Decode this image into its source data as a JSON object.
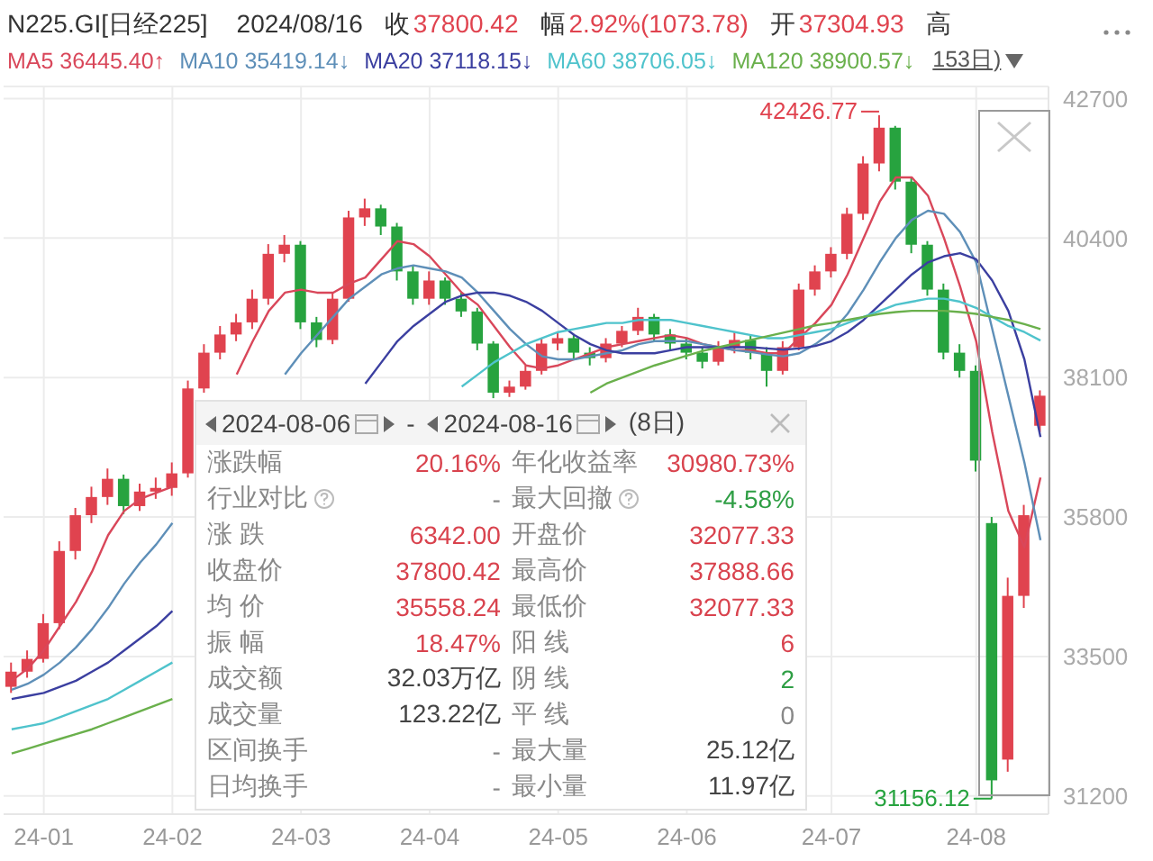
{
  "chart_data": [
    {
      "type": "candlestick",
      "title": "N225.GI[日经225]",
      "subtitle": "2024/08/16",
      "categories": [
        null,
        null,
        "24-01",
        null,
        null,
        null,
        null,
        null,
        null,
        null,
        "24-02",
        null,
        null,
        null,
        null,
        null,
        null,
        null,
        "24-03",
        null,
        null,
        null,
        null,
        null,
        null,
        null,
        "24-04",
        null,
        null,
        null,
        null,
        null,
        null,
        null,
        "24-05",
        null,
        null,
        null,
        null,
        null,
        null,
        null,
        "24-06",
        null,
        null,
        null,
        null,
        null,
        null,
        null,
        null,
        "24-07",
        null,
        null,
        null,
        null,
        null,
        null,
        null,
        null,
        "24-08",
        null,
        null,
        null,
        null
      ],
      "ohlc": [
        [
          33000,
          33400,
          32900,
          33250
        ],
        [
          33250,
          33600,
          33150,
          33460
        ],
        [
          33460,
          34200,
          33400,
          34050
        ],
        [
          34050,
          35400,
          33950,
          35240
        ],
        [
          35240,
          35950,
          35100,
          35830
        ],
        [
          35830,
          36300,
          35700,
          36130
        ],
        [
          36130,
          36600,
          36000,
          36430
        ],
        [
          36430,
          36500,
          35850,
          35980
        ],
        [
          35980,
          36350,
          35900,
          36220
        ],
        [
          36220,
          36450,
          36100,
          36280
        ],
        [
          36280,
          36700,
          36150,
          36520
        ],
        [
          36520,
          38050,
          36450,
          37920
        ],
        [
          37920,
          38650,
          37850,
          38510
        ],
        [
          38510,
          38950,
          38400,
          38810
        ],
        [
          38810,
          39150,
          38700,
          39010
        ],
        [
          39010,
          39550,
          38900,
          39400
        ],
        [
          39400,
          40300,
          39300,
          40140
        ],
        [
          40140,
          40450,
          40000,
          40290
        ],
        [
          40290,
          40350,
          38900,
          39010
        ],
        [
          39010,
          39100,
          38600,
          38720
        ],
        [
          38720,
          39500,
          38650,
          39400
        ],
        [
          39400,
          40850,
          39350,
          40740
        ],
        [
          40740,
          41050,
          40600,
          40890
        ],
        [
          40890,
          40950,
          40450,
          40590
        ],
        [
          40590,
          40650,
          39700,
          39850
        ],
        [
          39850,
          39950,
          39300,
          39400
        ],
        [
          39400,
          39850,
          39300,
          39700
        ],
        [
          39700,
          39750,
          39300,
          39400
        ],
        [
          39400,
          39500,
          39100,
          39190
        ],
        [
          39190,
          39250,
          38550,
          38660
        ],
        [
          38660,
          38700,
          37760,
          37850
        ],
        [
          37850,
          38050,
          37780,
          37950
        ],
        [
          37950,
          38300,
          37900,
          38210
        ],
        [
          38210,
          38750,
          38150,
          38660
        ],
        [
          38660,
          38850,
          38550,
          38750
        ],
        [
          38750,
          38800,
          38400,
          38510
        ],
        [
          38510,
          38600,
          38300,
          38420
        ],
        [
          38420,
          38750,
          38350,
          38660
        ],
        [
          38660,
          38950,
          38600,
          38870
        ],
        [
          38870,
          39250,
          38800,
          39100
        ],
        [
          39100,
          39150,
          38700,
          38810
        ],
        [
          38810,
          38900,
          38550,
          38660
        ],
        [
          38660,
          38750,
          38400,
          38510
        ],
        [
          38510,
          38600,
          38250,
          38360
        ],
        [
          38360,
          38700,
          38300,
          38600
        ],
        [
          38600,
          38850,
          38500,
          38720
        ],
        [
          38720,
          38800,
          38400,
          38510
        ],
        [
          38510,
          38600,
          37950,
          38210
        ],
        [
          38210,
          38700,
          38150,
          38600
        ],
        [
          38600,
          39650,
          38550,
          39550
        ],
        [
          39550,
          39950,
          39450,
          39850
        ],
        [
          39850,
          40250,
          39750,
          40140
        ],
        [
          40140,
          40900,
          40050,
          40800
        ],
        [
          40800,
          41750,
          40700,
          41630
        ],
        [
          41630,
          42426.77,
          41500,
          42220
        ],
        [
          42220,
          42250,
          41200,
          41330
        ],
        [
          41330,
          41400,
          40150,
          40290
        ],
        [
          40290,
          40350,
          39450,
          39550
        ],
        [
          39550,
          39650,
          38400,
          38510
        ],
        [
          38510,
          38650,
          38100,
          38210
        ],
        [
          38210,
          38300,
          36550,
          36730
        ],
        [
          35700,
          35800,
          31156.12,
          31458
        ],
        [
          31800,
          34800,
          31600,
          34500
        ],
        [
          34500,
          36000,
          34300,
          35830
        ],
        [
          37304.93,
          37888.66,
          37200,
          37800.42
        ]
      ],
      "series": [
        {
          "name": "MA5 36445.40↑",
          "type": "line",
          "color": "#d9475a",
          "values": [
            33100,
            33300,
            33600,
            34000,
            34400,
            34900,
            35500,
            35900,
            36100,
            36200,
            36300,
            null,
            null,
            null,
            38150,
            38700,
            39200,
            39500,
            39550,
            39500,
            39500,
            39650,
            39750,
            40050,
            40350,
            40300,
            40100,
            39800,
            39500,
            39300,
            38950,
            38600,
            38300,
            38250,
            38300,
            38400,
            38500,
            38600,
            38650,
            38700,
            38750,
            38800,
            38750,
            38650,
            38600,
            38550,
            38550,
            38500,
            38500,
            38750,
            39000,
            39300,
            39800,
            40400,
            41000,
            41400,
            41400,
            41100,
            40400,
            39600,
            38700,
            37200,
            35900,
            35300,
            36450
          ]
        },
        {
          "name": "MA10 35419.14↓",
          "type": "line",
          "color": "#5e8fb8",
          "values": [
            32950,
            33050,
            33200,
            33400,
            33650,
            33950,
            34300,
            34700,
            35050,
            35350,
            35700,
            null,
            null,
            null,
            null,
            null,
            null,
            38150,
            38500,
            38800,
            39100,
            39400,
            39600,
            39800,
            39900,
            39950,
            39900,
            39850,
            39750,
            39500,
            39200,
            38900,
            38650,
            38450,
            38400,
            38400,
            38450,
            38500,
            38550,
            38650,
            38700,
            38700,
            38700,
            38650,
            38600,
            38550,
            38520,
            38480,
            38450,
            38500,
            38650,
            38850,
            39150,
            39550,
            40000,
            40400,
            40700,
            40850,
            40800,
            40500,
            40000,
            38900,
            37800,
            36700,
            35420
          ]
        },
        {
          "name": "MA20 37118.15↓",
          "type": "line",
          "color": "#3b3fa0",
          "values": [
            32800,
            32850,
            32900,
            33000,
            33100,
            33250,
            33400,
            33600,
            33800,
            34000,
            34250,
            null,
            null,
            null,
            null,
            null,
            null,
            null,
            null,
            null,
            null,
            null,
            38000,
            38350,
            38700,
            38950,
            39150,
            39350,
            39450,
            39500,
            39500,
            39450,
            39350,
            39200,
            39000,
            38800,
            38650,
            38550,
            38500,
            38500,
            38500,
            38550,
            38600,
            38600,
            38600,
            38600,
            38600,
            38580,
            38560,
            38580,
            38620,
            38700,
            38850,
            39050,
            39300,
            39550,
            39800,
            40000,
            40100,
            40150,
            40050,
            39700,
            39200,
            38400,
            37120
          ]
        },
        {
          "name": "MA60 38706.05↓",
          "type": "line",
          "color": "#4fc3cc",
          "values": [
            32300,
            32350,
            32400,
            32500,
            32600,
            32700,
            32800,
            32950,
            33100,
            33250,
            33400,
            null,
            null,
            null,
            null,
            null,
            null,
            null,
            null,
            null,
            null,
            null,
            null,
            null,
            null,
            null,
            null,
            null,
            37950,
            38150,
            38350,
            38500,
            38650,
            38750,
            38850,
            38900,
            38950,
            39000,
            39000,
            39050,
            39050,
            39050,
            39000,
            38950,
            38900,
            38850,
            38800,
            38750,
            38750,
            38800,
            38850,
            38900,
            39000,
            39100,
            39200,
            39300,
            39350,
            39400,
            39400,
            39350,
            39250,
            39100,
            38950,
            38850,
            38710
          ]
        },
        {
          "name": "MA120 38900.57↓",
          "type": "line",
          "color": "#6ab04c",
          "values": [
            31900,
            31980,
            32060,
            32140,
            32220,
            32300,
            32400,
            32500,
            32600,
            32700,
            32800,
            null,
            null,
            null,
            null,
            null,
            null,
            null,
            null,
            null,
            null,
            null,
            null,
            null,
            null,
            null,
            null,
            null,
            null,
            null,
            null,
            null,
            null,
            null,
            null,
            null,
            37850,
            38000,
            38100,
            38200,
            38300,
            38380,
            38460,
            38540,
            38600,
            38660,
            38720,
            38780,
            38840,
            38900,
            38960,
            39000,
            39050,
            39100,
            39150,
            39180,
            39200,
            39200,
            39200,
            39180,
            39150,
            39100,
            39050,
            38980,
            38900
          ]
        }
      ],
      "ylim": [
        30900,
        42900
      ],
      "yticks": [
        31200,
        33500,
        35800,
        38100,
        40400,
        42700
      ],
      "grid": true,
      "legend": "top",
      "annotations": [
        "收37800.42",
        "幅2.92%(1073.78)",
        "开37304.93",
        "高",
        "153日)",
        "42426.77",
        "31156.12"
      ]
    },
    {
      "type": "other",
      "annotations": [
        "2024-08-06",
        "-",
        "2024-08-16",
        "(8日)",
        "涨跌幅",
        "20.16%",
        "年化收益率",
        "30980.73%",
        "行业对比",
        "-",
        "最大回撤",
        "-4.58%",
        "涨 跌",
        "6342.00",
        "开盘价",
        "32077.33",
        "收盘价",
        "37800.42",
        "最高价",
        "37888.66",
        "均 价",
        "35558.24",
        "最低价",
        "32077.33",
        "振 幅",
        "18.47%",
        "阳 线",
        "6",
        "成交额",
        "32.03万亿",
        "阴 线",
        "2",
        "成交量",
        "123.22亿",
        "平 线",
        "0",
        "区间换手",
        "-",
        "最大量",
        "25.12亿",
        "日均换手",
        "-",
        "最小量",
        "11.97亿"
      ],
      "colors": [
        "#444444",
        "#444444",
        "#444444",
        "#444444",
        "#888888",
        "#d9434e",
        "#888888",
        "#d9434e",
        "#888888",
        "#888888",
        "#888888",
        "#2e9e44",
        "#888888",
        "#d9434e",
        "#888888",
        "#d9434e",
        "#888888",
        "#d9434e",
        "#888888",
        "#d9434e",
        "#888888",
        "#d9434e",
        "#888888",
        "#d9434e",
        "#888888",
        "#d9434e",
        "#888888",
        "#d9434e",
        "#888888",
        "#444444",
        "#888888",
        "#2e9e44",
        "#888888",
        "#444444",
        "#888888",
        "#888888",
        "#888888",
        "#888888",
        "#888888",
        "#444444",
        "#888888",
        "#888888",
        "#888888",
        "#444444"
      ]
    }
  ]
}
